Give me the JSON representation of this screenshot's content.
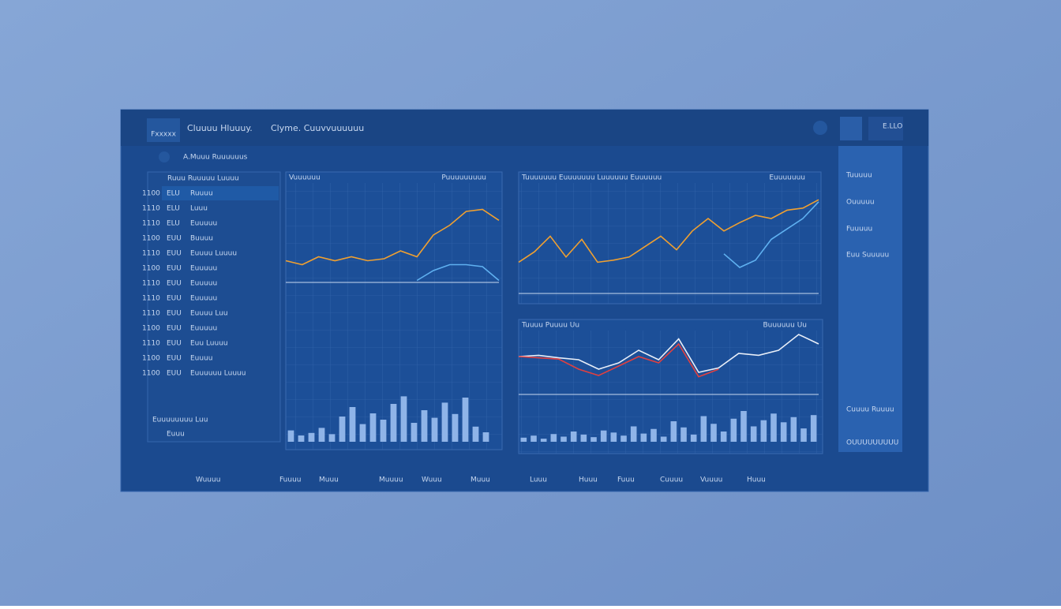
{
  "header": {
    "logo": "Fxxxxx",
    "nav": [
      "Cluuuu Hluuuy.",
      "Clyme. Cuuvvuuuuuu"
    ],
    "user": "E.LLO"
  },
  "subheader": "A.Muuu Ruuuuuus",
  "sidebar": {
    "title": "Ruuu Ruuuuu Luuuu",
    "rows": [
      [
        "1100",
        "ELU",
        "Ruuuu"
      ],
      [
        "1110",
        "ELU",
        "Luuu"
      ],
      [
        "1110",
        "ELU",
        "Euuuuu"
      ],
      [
        "1100",
        "EUU",
        "Buuuu"
      ],
      [
        "1110",
        "EUU",
        "Euuuu Luuuu"
      ],
      [
        "1100",
        "EUU",
        "Euuuuu"
      ],
      [
        "1110",
        "EUU",
        "Euuuuu"
      ],
      [
        "1110",
        "EUU",
        "Euuuuu"
      ],
      [
        "1110",
        "EUU",
        "Euuuu Luu"
      ],
      [
        "1100",
        "EUU",
        "Euuuuu"
      ],
      [
        "1110",
        "EUU",
        "Euu Luuuu"
      ],
      [
        "1100",
        "EUU",
        "Euuuu"
      ],
      [
        "1100",
        "EUU",
        "Euuuuuu Luuuu"
      ]
    ],
    "footer": [
      "Euuuuuuuu Luu",
      "Euuu"
    ]
  },
  "panels": [
    {
      "title": "Vuuuuuu",
      "subtitle": "Puuuuuuuuu",
      "lines": [
        {
          "color": "#f0a030",
          "values": [
            22,
            18,
            26,
            22,
            26,
            22,
            24,
            32,
            26,
            48,
            58,
            72,
            74,
            63
          ]
        },
        {
          "color": "#5fb0f0",
          "values": [
            null,
            null,
            null,
            null,
            null,
            null,
            null,
            null,
            2,
            12,
            18,
            18,
            16,
            2
          ]
        }
      ],
      "bars": [
        18,
        10,
        14,
        22,
        12,
        40,
        55,
        28,
        45,
        35,
        60,
        72,
        30,
        50,
        38,
        62,
        44,
        70,
        24,
        15
      ]
    },
    {
      "title": "Tuuuuuuu Euuuuuuu Luuuuuu Euuuuuu",
      "subtitle": "Euuuuuuu",
      "lines": [
        {
          "color": "#f0a030",
          "values": [
            30,
            40,
            55,
            35,
            52,
            30,
            32,
            35,
            45,
            55,
            42,
            60,
            72,
            60,
            68,
            75,
            72,
            80,
            82,
            90
          ]
        },
        {
          "color": "#5fb0f0",
          "values": [
            null,
            null,
            null,
            null,
            null,
            null,
            null,
            null,
            null,
            null,
            null,
            null,
            null,
            38,
            25,
            32,
            52,
            62,
            72,
            88
          ]
        }
      ]
    },
    {
      "title": "Tuuuu Puuuu Uu",
      "subtitle": "Buuuuuu Uu",
      "lines": [
        {
          "color": "#e8eef8",
          "values": [
            60,
            62,
            58,
            55,
            40,
            50,
            70,
            55,
            88,
            35,
            42,
            65,
            62,
            70,
            95,
            80
          ]
        },
        {
          "color": "#e04040",
          "values": [
            60,
            58,
            56,
            40,
            30,
            45,
            60,
            50,
            80,
            28,
            40,
            null,
            null,
            null,
            null,
            null
          ]
        }
      ],
      "bars": [
        8,
        12,
        6,
        15,
        10,
        20,
        14,
        9,
        22,
        18,
        12,
        30,
        16,
        25,
        10,
        40,
        28,
        14,
        50,
        35,
        20,
        45,
        60,
        30,
        42,
        55,
        38,
        48,
        26,
        52
      ]
    }
  ],
  "right": [
    "Tuuuuu",
    "Ouuuuu",
    "Fuuuuu",
    "Euu Suuuuu",
    "Cuuuu Ruuuu",
    "OUUUUUUUUU"
  ],
  "footer": [
    "Wuuuu",
    "Fuuuu",
    "Muuu",
    "Muuuu",
    "Wuuu",
    "Muuu",
    "Luuu",
    "Huuu",
    "Fuuu",
    "Cuuuu",
    "Vuuuu",
    "Huuu"
  ]
}
